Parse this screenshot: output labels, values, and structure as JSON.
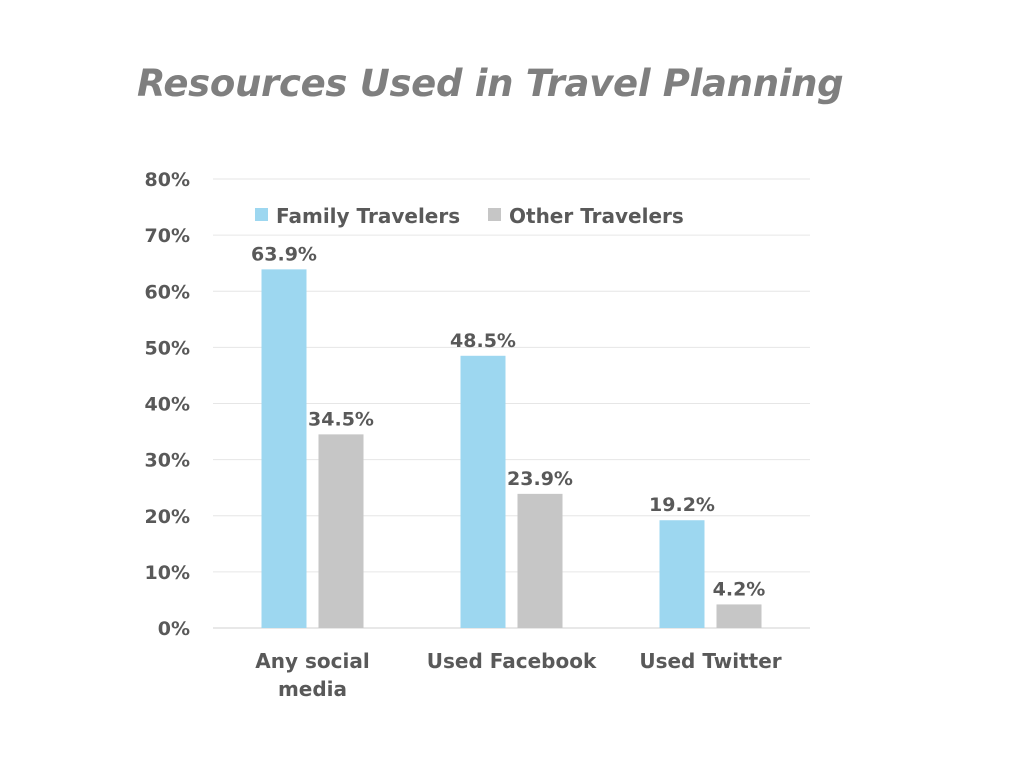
{
  "chart_data": {
    "type": "bar",
    "title": "Resources Used in Travel Planning",
    "xlabel": "",
    "ylabel": "",
    "categories": [
      "Any social media",
      "Used Facebook",
      "Used Twitter"
    ],
    "category_lines": [
      [
        "Any social",
        "media"
      ],
      [
        "Used Facebook"
      ],
      [
        "Used Twitter"
      ]
    ],
    "series": [
      {
        "name": "Family Travelers",
        "values": [
          63.9,
          48.5,
          19.2
        ],
        "labels": [
          "63.9%",
          "48.5%",
          "19.2%"
        ],
        "color": "#9dd7f0"
      },
      {
        "name": "Other Travelers",
        "values": [
          34.5,
          23.9,
          4.2
        ],
        "labels": [
          "34.5%",
          "23.9%",
          "4.2%"
        ],
        "color": "#c6c6c6"
      }
    ],
    "ylim": [
      0,
      80
    ],
    "yticks": [
      0,
      10,
      20,
      30,
      40,
      50,
      60,
      70,
      80
    ],
    "ytick_labels": [
      "0%",
      "10%",
      "20%",
      "30%",
      "40%",
      "50%",
      "60%",
      "70%",
      "80%"
    ],
    "grid": true,
    "legend": "top-left"
  }
}
